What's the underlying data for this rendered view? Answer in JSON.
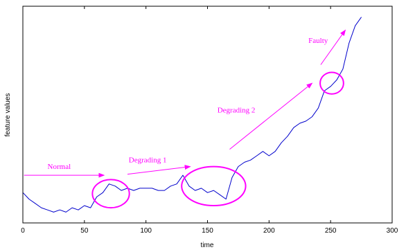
{
  "chart_data": {
    "type": "line",
    "title": "",
    "xlabel": "time",
    "ylabel": "feature values",
    "xlim": [
      0,
      300
    ],
    "ylim": [
      0,
      100
    ],
    "x_ticks": [
      0,
      50,
      100,
      150,
      200,
      250,
      300
    ],
    "y_ticks_labeled": false,
    "grid": false,
    "series": [
      {
        "color": "#0000cc",
        "x": [
          0,
          5,
          10,
          15,
          20,
          25,
          30,
          35,
          40,
          45,
          50,
          55,
          60,
          65,
          70,
          75,
          80,
          85,
          90,
          95,
          100,
          105,
          110,
          115,
          120,
          125,
          130,
          135,
          140,
          145,
          150,
          155,
          160,
          165,
          170,
          175,
          180,
          185,
          190,
          195,
          200,
          205,
          210,
          215,
          220,
          225,
          230,
          235,
          240,
          245,
          250,
          255,
          260,
          265,
          270,
          275
        ],
        "y": [
          14,
          11,
          9,
          7,
          6,
          5,
          6,
          5,
          7,
          6,
          8,
          7,
          12,
          14,
          18,
          17,
          15,
          16,
          15,
          16,
          16,
          16,
          15,
          15,
          17,
          18,
          22,
          17,
          15,
          16,
          14,
          15,
          13,
          11,
          21,
          26,
          28,
          29,
          31,
          33,
          31,
          33,
          37,
          40,
          44,
          46,
          47,
          49,
          53,
          61,
          63,
          66,
          71,
          83,
          91,
          95
        ]
      }
    ],
    "annotations": [
      {
        "text": "Normal",
        "color": "#ff00ff",
        "arrow": {
          "from": [
            1,
            22
          ],
          "to": [
            66,
            22
          ]
        },
        "label_at": [
          20,
          25
        ]
      },
      {
        "text": "Degrading 1",
        "color": "#ff00ff",
        "arrow": {
          "from": [
            85,
            22.5
          ],
          "to": [
            136,
            26
          ]
        },
        "label_at": [
          86,
          28
        ]
      },
      {
        "text": "Degrading 2",
        "color": "#ff00ff",
        "arrow": {
          "from": [
            168,
            34
          ],
          "to": [
            235,
            64.5
          ]
        },
        "label_at": [
          158,
          51
        ]
      },
      {
        "text": "Faulty",
        "color": "#ff00ff",
        "arrow": {
          "from": [
            242,
            73
          ],
          "to": [
            262,
            89
          ]
        },
        "label_at": [
          232,
          83
        ]
      }
    ],
    "ellipses": [
      {
        "color": "#ff00ff",
        "center": [
          71.5,
          13.5
        ],
        "radius": [
          15,
          6.5
        ]
      },
      {
        "color": "#ff00ff",
        "center": [
          155,
          17
        ],
        "radius": [
          26,
          9
        ]
      },
      {
        "color": "#ff00ff",
        "center": [
          251,
          64.5
        ],
        "radius": [
          9.5,
          5
        ]
      }
    ]
  }
}
